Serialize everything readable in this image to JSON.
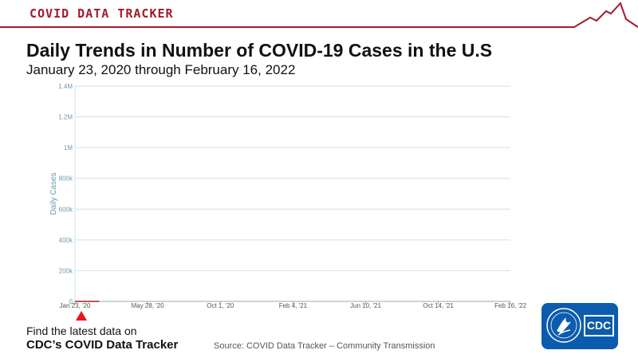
{
  "header": {
    "brand": "COVID DATA TRACKER",
    "accent_color": "#a01c2c",
    "trend_icon": "trend-line-icon"
  },
  "title": "Daily Trends in Number of COVID-19 Cases in the U.S",
  "subtitle": "January 23, 2020 through February 16, 2022",
  "chart_data": {
    "type": "line",
    "ylabel": "Daily Cases",
    "xlabel": "",
    "ylim": [
      0,
      1400000
    ],
    "yticks": [
      0,
      200000,
      400000,
      600000,
      800000,
      1000000,
      1200000,
      1400000
    ],
    "ytick_labels": [
      "0",
      "200k",
      "400k",
      "600k",
      "800k",
      "1M",
      "1.2M",
      "1.4M"
    ],
    "xlim": [
      "2020-01-23",
      "2022-02-16"
    ],
    "xticks": [
      "2020-01-23",
      "2020-05-28",
      "2020-10-01",
      "2021-02-04",
      "2021-06-10",
      "2021-10-14",
      "2022-02-16"
    ],
    "xtick_labels": [
      "Jan 23, '20",
      "May 28, '20",
      "Oct 1, '20",
      "Feb 4, '21",
      "Jun 10, '21",
      "Oct 14, '21",
      "Feb 16, '22"
    ],
    "grid": true,
    "series": [
      {
        "color": "#a01c2c",
        "x": [
          "2020-01-23",
          "2020-02-01",
          "2020-02-15",
          "2020-03-01",
          "2020-03-05"
        ],
        "y": [
          0,
          0,
          0,
          0,
          500
        ]
      }
    ],
    "marker": {
      "date": "2020-03-05",
      "color": "#e8141a",
      "icon": "triangle-up-icon"
    }
  },
  "footer": {
    "find_text": "Find the latest data on",
    "tracker_text": "CDC’s COVID Data Tracker",
    "source": "Source: COVID Data Tracker – Community Transmission"
  },
  "logo": {
    "text": "CDC",
    "bg_color": "#0b5cad",
    "seal_icon": "hhs-eagle-seal-icon"
  }
}
